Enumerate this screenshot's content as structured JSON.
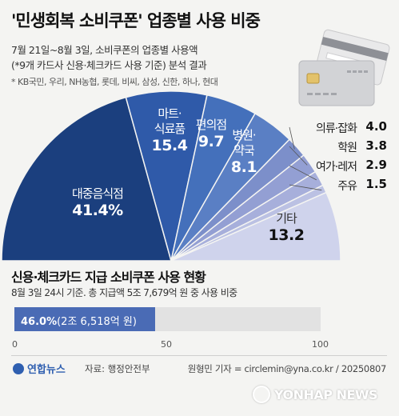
{
  "title": "'민생회복 소비쿠폰' 업종별 사용 비중",
  "subtitle_line1": "7월 21일~8월 3일, 소비쿠폰의 업종별 사용액",
  "subtitle_line2": "(*9개 카드사 신용·체크카드 사용 기준) 분석 결과",
  "note": "* KB국민, 우리, NH농협, 롯데, 비씨, 삼성, 신한, 하나, 현대",
  "colors": {
    "navy": "#1b3f7e",
    "blue1": "#2f5aa9",
    "blue2": "#4470bb",
    "blue3": "#5a7fc4",
    "slice1": "#7c8fca",
    "slice2": "#939fd3",
    "slice3": "#a7afdb",
    "slice4": "#bbc1e3",
    "slice5": "#cfd3ec",
    "bar": "#4a6bb5"
  },
  "chart_data": [
    {
      "type": "pie",
      "title": "'민생회복 소비쿠폰' 업종별 사용 비중",
      "unit": "%",
      "slices": [
        {
          "label": "대중음식점",
          "value": 41.4,
          "display": "41.4%"
        },
        {
          "label": "마트·식료품",
          "value": 15.4,
          "display": "15.4"
        },
        {
          "label": "편의점",
          "value": 9.7,
          "display": "9.7"
        },
        {
          "label": "병원·약국",
          "value": 8.1,
          "display": "8.1"
        },
        {
          "label": "의류·잡화",
          "value": 4.0,
          "display": "4.0"
        },
        {
          "label": "학원",
          "value": 3.8,
          "display": "3.8"
        },
        {
          "label": "여가·레저",
          "value": 2.9,
          "display": "2.9"
        },
        {
          "label": "주유",
          "value": 1.5,
          "display": "1.5"
        },
        {
          "label": "기타",
          "value": 13.2,
          "display": "13.2"
        }
      ]
    },
    {
      "type": "bar",
      "title": "신용·체크카드 지급 소비쿠폰 사용 현황",
      "subtitle": "8월 3일 24시 기준. 총 지급액 5조 7,679억 원 중 사용 비중",
      "value": 46.0,
      "value_label": "46.0%",
      "amount_label": "(2조 6,518억 원)",
      "xlim": [
        0,
        100
      ],
      "ticks": [
        "0",
        "50",
        "100"
      ]
    }
  ],
  "pie_labels": {
    "s0_name": "대중음식점",
    "s0_val": "41.4%",
    "s1_name_a": "마트·",
    "s1_name_b": "식료품",
    "s1_val": "15.4",
    "s2_name": "편의점",
    "s2_val": "9.7",
    "s3_name_a": "병원·",
    "s3_name_b": "약국",
    "s3_val": "8.1",
    "s8_name": "기타",
    "s8_val": "13.2"
  },
  "legend": [
    {
      "name": "의류·잡화",
      "value": "4.0"
    },
    {
      "name": "학원",
      "value": "3.8"
    },
    {
      "name": "여가·레저",
      "value": "2.9"
    },
    {
      "name": "주유",
      "value": "1.5"
    }
  ],
  "bar": {
    "title": "신용·체크카드 지급 소비쿠폰 사용 현황",
    "subtitle": "8월 3일 24시 기준. 총 지급액 5조 7,679억 원 중 사용 비중",
    "pct": "46.0%",
    "amount": "(2조 6,518억 원)",
    "ticks": [
      "0",
      "50",
      "100"
    ]
  },
  "footer": {
    "logo": "연합뉴스",
    "source": "자료: 행정안전부",
    "credit": "원형민 기자 = circlemin@yna.co.kr / 20250807",
    "watermark": "YONHAP NEWS"
  }
}
